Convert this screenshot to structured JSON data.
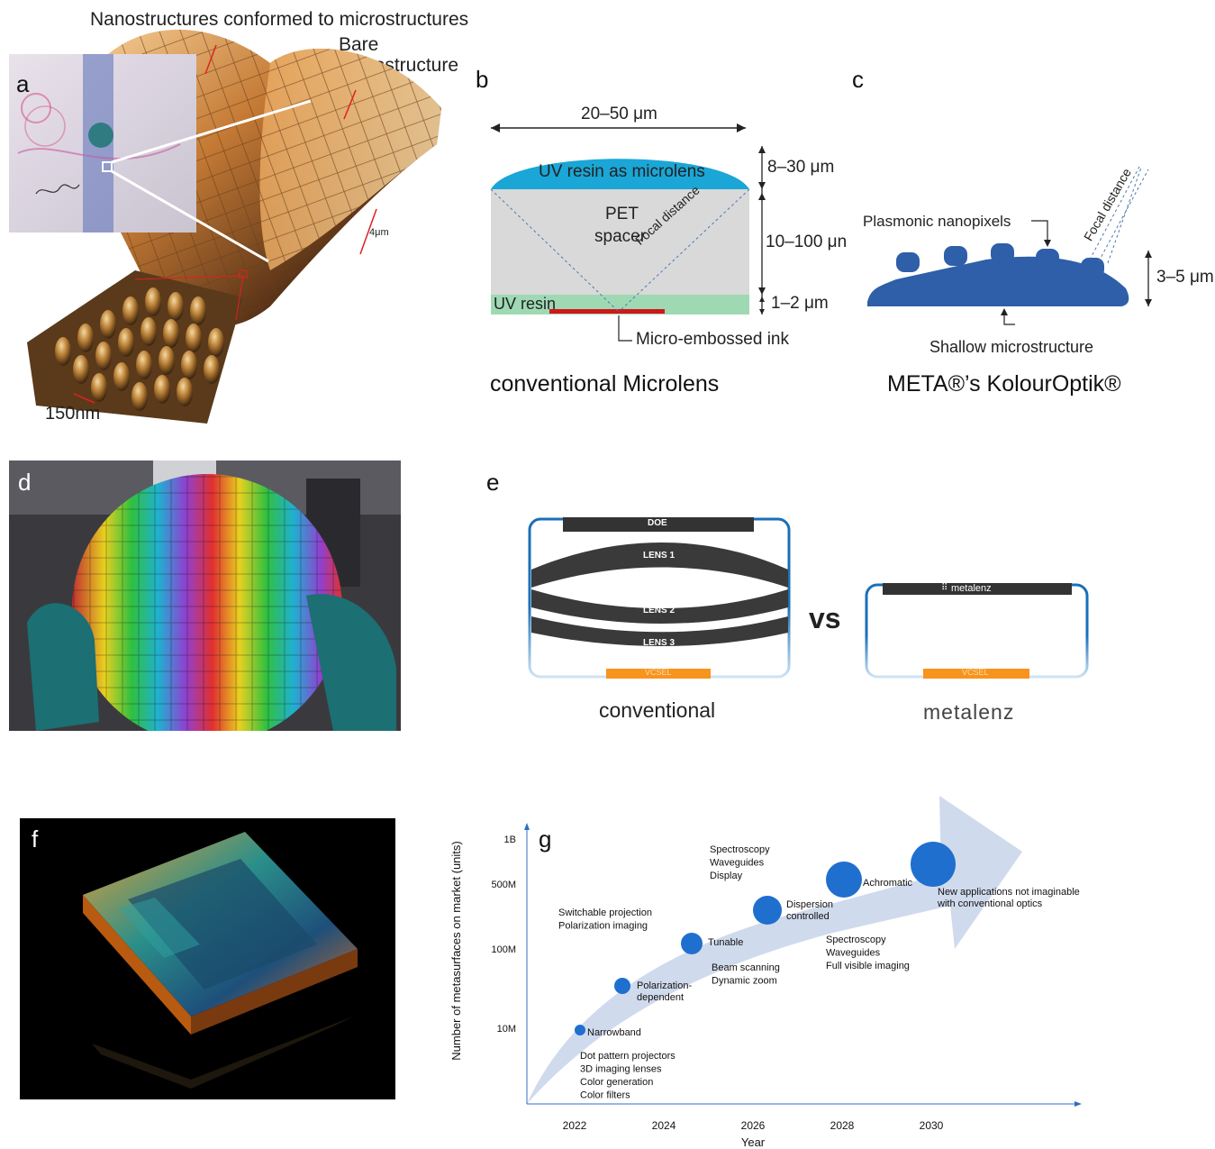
{
  "panel_a": {
    "letter": "a",
    "title": "Nanostructures conformed to microstructures",
    "bare_label_line1": "Bare",
    "bare_label_line2": "microstructure",
    "scale_micro": "4μm",
    "scale_nano": "150nm"
  },
  "panel_b": {
    "letter": "b",
    "width_dim": "20–50 μm",
    "lens_label": "UV resin as microlens",
    "lens_dim": "8–30 μm",
    "spacer_line1": "PET",
    "spacer_line2": "spacer",
    "spacer_dim": "10–100 μn",
    "focal_label": "Focal distance",
    "base_label": "UV resin",
    "base_dim": "1–2 μm",
    "ink_label": "Micro-embossed ink",
    "caption": "conventional Microlens"
  },
  "panel_c": {
    "letter": "c",
    "focal_label": "Focal distance",
    "nanopixels_label": "Plasmonic nanopixels",
    "height_dim": "3–5 μm",
    "microstructure_label": "Shallow microstructure",
    "caption": "META®’s KolourOptik®"
  },
  "panel_d": {
    "letter": "d"
  },
  "panel_e": {
    "letter": "e",
    "doe_label": "DOE",
    "lens1": "LENS 1",
    "lens2": "LENS 2",
    "lens3": "LENS 3",
    "vcsel_left": "VCSEL",
    "vs_label": "vs",
    "metalenz_chip": "metalenz",
    "vcsel_right": "VCSEL",
    "caption_left": "conventional",
    "caption_right": "metalenz"
  },
  "panel_f": {
    "letter": "f"
  },
  "panel_g": {
    "letter": "g"
  },
  "chart_data": {
    "type": "scatter",
    "title": "",
    "xlabel": "Year",
    "ylabel": "Number of metasurfaces on market (units)",
    "x_ticks": [
      "2022",
      "2024",
      "2026",
      "2028",
      "2030"
    ],
    "y_ticks": [
      "10M",
      "100M",
      "500M",
      "1B"
    ],
    "y_scale": "log",
    "xlim": [
      2020.2,
      2034.5
    ],
    "grid": false,
    "points": [
      {
        "label": "Narrowband",
        "x": 2022.3,
        "y": 9000000,
        "size": 1
      },
      {
        "label": "Polarization-dependent",
        "x": 2023.1,
        "y": 30000000,
        "size": 2
      },
      {
        "label": "Tunable",
        "x": 2024.6,
        "y": 120000000,
        "size": 3
      },
      {
        "label": "Dispersion controlled",
        "x": 2026.3,
        "y": 270000000,
        "size": 4
      },
      {
        "label": "Achromatic",
        "x": 2028.1,
        "y": 550000000,
        "size": 5
      },
      {
        "label": "New applications not imaginable with conventional optics",
        "x": 2030.0,
        "y": 720000000,
        "size": 6
      }
    ],
    "annotations": [
      {
        "lines": [
          "Dot pattern projectors",
          "3D imaging lenses",
          "Color generation",
          "Color filters"
        ]
      },
      {
        "lines": [
          "Switchable projection",
          "Polarization imaging"
        ]
      },
      {
        "lines": [
          "Beam scanning",
          "Dynamic zoom"
        ]
      },
      {
        "lines": [
          "Spectroscopy",
          "Waveguides",
          "Display"
        ]
      },
      {
        "lines": [
          "Spectroscopy",
          "Waveguides",
          "Full visible imaging"
        ]
      }
    ],
    "colors": {
      "bubble": "#1f6fcf",
      "arrow": "#c8d3ea",
      "axis": "#2f6fc0"
    }
  }
}
